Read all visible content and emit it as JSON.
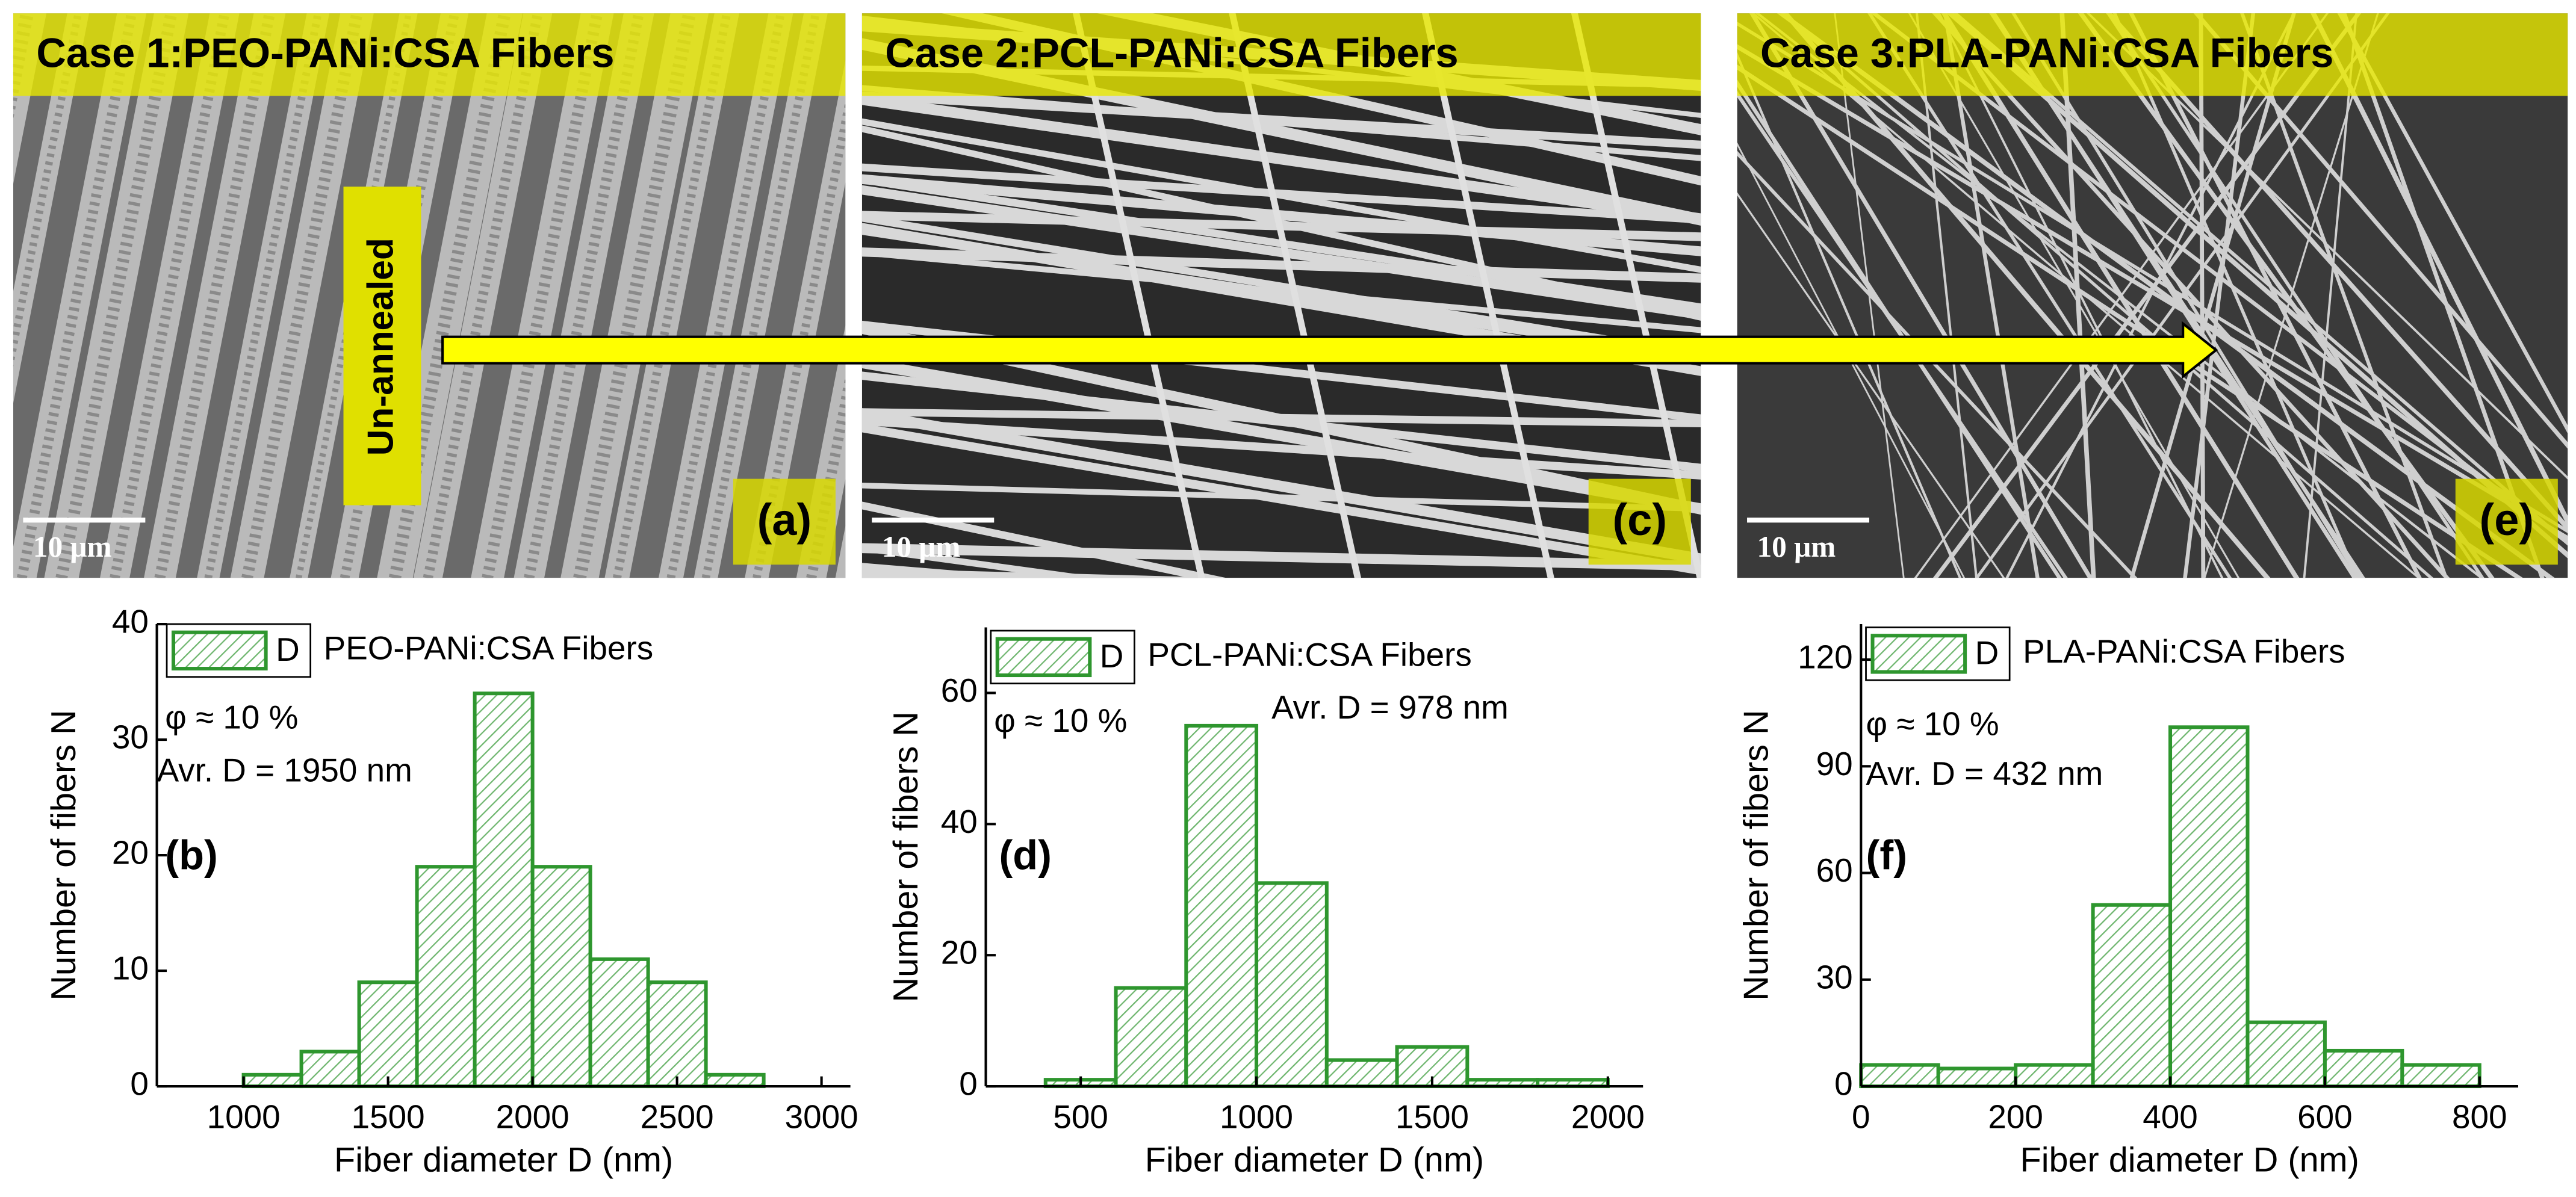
{
  "panels": [
    {
      "title": "Case 1:PEO-PANi:CSA Fibers",
      "label": "(a)",
      "scale_bar": "10 μm"
    },
    {
      "title": "Case 2:PCL-PANi:CSA Fibers",
      "label": "(c)",
      "scale_bar": "10 μm"
    },
    {
      "title": "Case 3:PLA-PANi:CSA Fibers",
      "label": "(e)",
      "scale_bar": "10 μm"
    }
  ],
  "annotation": "Un-annealed",
  "chart_data": [
    {
      "type": "histogram",
      "x_label": "Fiber diameter D (nm)",
      "y_label": "Number of fibers N",
      "bins": [
        1000,
        1200,
        1400,
        1600,
        1800,
        2000,
        2200,
        2400,
        2600,
        2800
      ],
      "series": [
        {
          "name": "D",
          "color": "#2e962e",
          "values": [
            1,
            3,
            9,
            19,
            34,
            19,
            11,
            9,
            1
          ]
        }
      ],
      "legend_text": "PEO-PANi:CSA Fibers",
      "annotations": [
        "φ ≈ 10 %",
        "Avr. D = 1950 nm",
        "(b)"
      ],
      "xlim": [
        700,
        3100
      ],
      "xticks": [
        1000,
        1500,
        2000,
        2500,
        3000
      ],
      "ylim": [
        0,
        40
      ],
      "yticks": [
        0,
        10,
        20,
        30,
        40
      ]
    },
    {
      "type": "histogram",
      "x_label": "Fiber diameter D (nm)",
      "y_label": "Number of fibers N",
      "bins": [
        400,
        600,
        800,
        1000,
        1200,
        1400,
        1600,
        1800,
        2000
      ],
      "series": [
        {
          "name": "D",
          "color": "#2e962e",
          "values": [
            1,
            15,
            55,
            31,
            4,
            6,
            1,
            1
          ]
        }
      ],
      "legend_text": "PCL-PANi:CSA Fibers",
      "annotations": [
        "φ ≈ 10 %",
        "Avr. D = 978 nm",
        "(d)"
      ],
      "xlim": [
        230,
        2100
      ],
      "xticks": [
        500,
        1000,
        1500,
        2000
      ],
      "ylim": [
        0,
        70
      ],
      "yticks": [
        0,
        20,
        40,
        60
      ]
    },
    {
      "type": "histogram",
      "x_label": "Fiber diameter D (nm)",
      "y_label": "Number of fibers N",
      "bins": [
        0,
        100,
        200,
        300,
        400,
        500,
        600,
        700,
        800
      ],
      "series": [
        {
          "name": "D",
          "color": "#2e962e",
          "values": [
            6,
            5,
            6,
            51,
            101,
            18,
            10,
            6
          ]
        }
      ],
      "legend_text": "PLA-PANi:CSA Fibers",
      "annotations": [
        "φ ≈ 10 %",
        "Avr. D = 432 nm",
        "(f)"
      ],
      "xlim": [
        0,
        850
      ],
      "xticks": [
        0,
        200,
        400,
        600,
        800
      ],
      "ylim": [
        0,
        130
      ],
      "yticks": [
        0,
        30,
        60,
        90,
        120
      ]
    }
  ]
}
